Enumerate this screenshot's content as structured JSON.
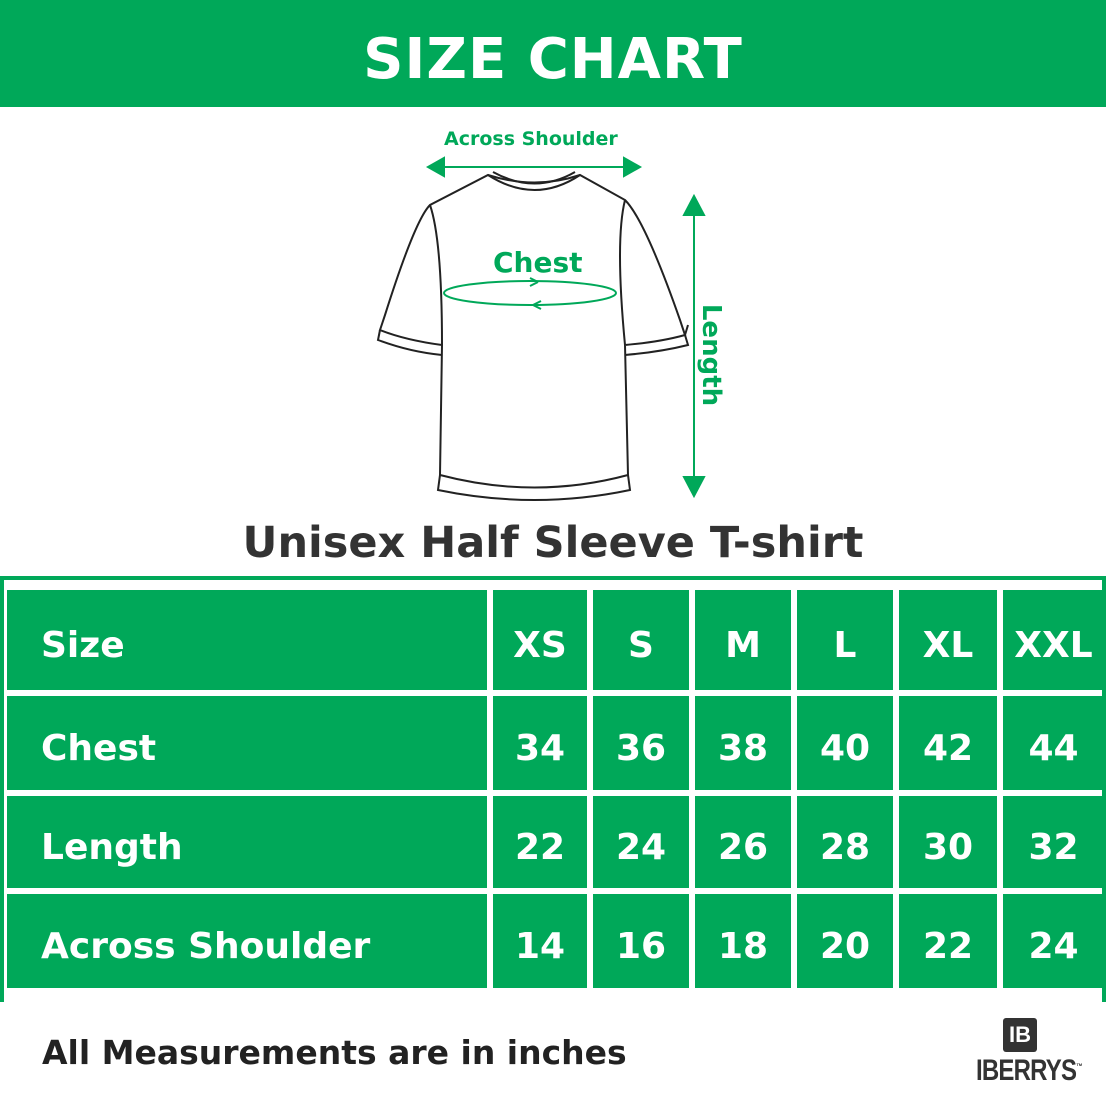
{
  "header": {
    "title": "SIZE CHART"
  },
  "diagram": {
    "across_shoulder_label": "Across Shoulder",
    "chest_label": "Chest",
    "length_label": "Length",
    "accent_color": "#00a859"
  },
  "product_title": "Unisex Half Sleeve T-shirt",
  "table": {
    "headers": [
      "Size",
      "XS",
      "S",
      "M",
      "L",
      "XL",
      "XXL"
    ],
    "rows": [
      {
        "label": "Chest",
        "values": [
          "34",
          "36",
          "38",
          "40",
          "42",
          "44"
        ]
      },
      {
        "label": "Length",
        "values": [
          "22",
          "24",
          "26",
          "28",
          "30",
          "32"
        ]
      },
      {
        "label": "Across Shoulder",
        "values": [
          "14",
          "16",
          "18",
          "20",
          "22",
          "24"
        ]
      }
    ]
  },
  "footer": {
    "note": "All Measurements are in inches"
  },
  "logo": {
    "mark": "IB",
    "name": "IBERRYS",
    "tm": "™"
  }
}
